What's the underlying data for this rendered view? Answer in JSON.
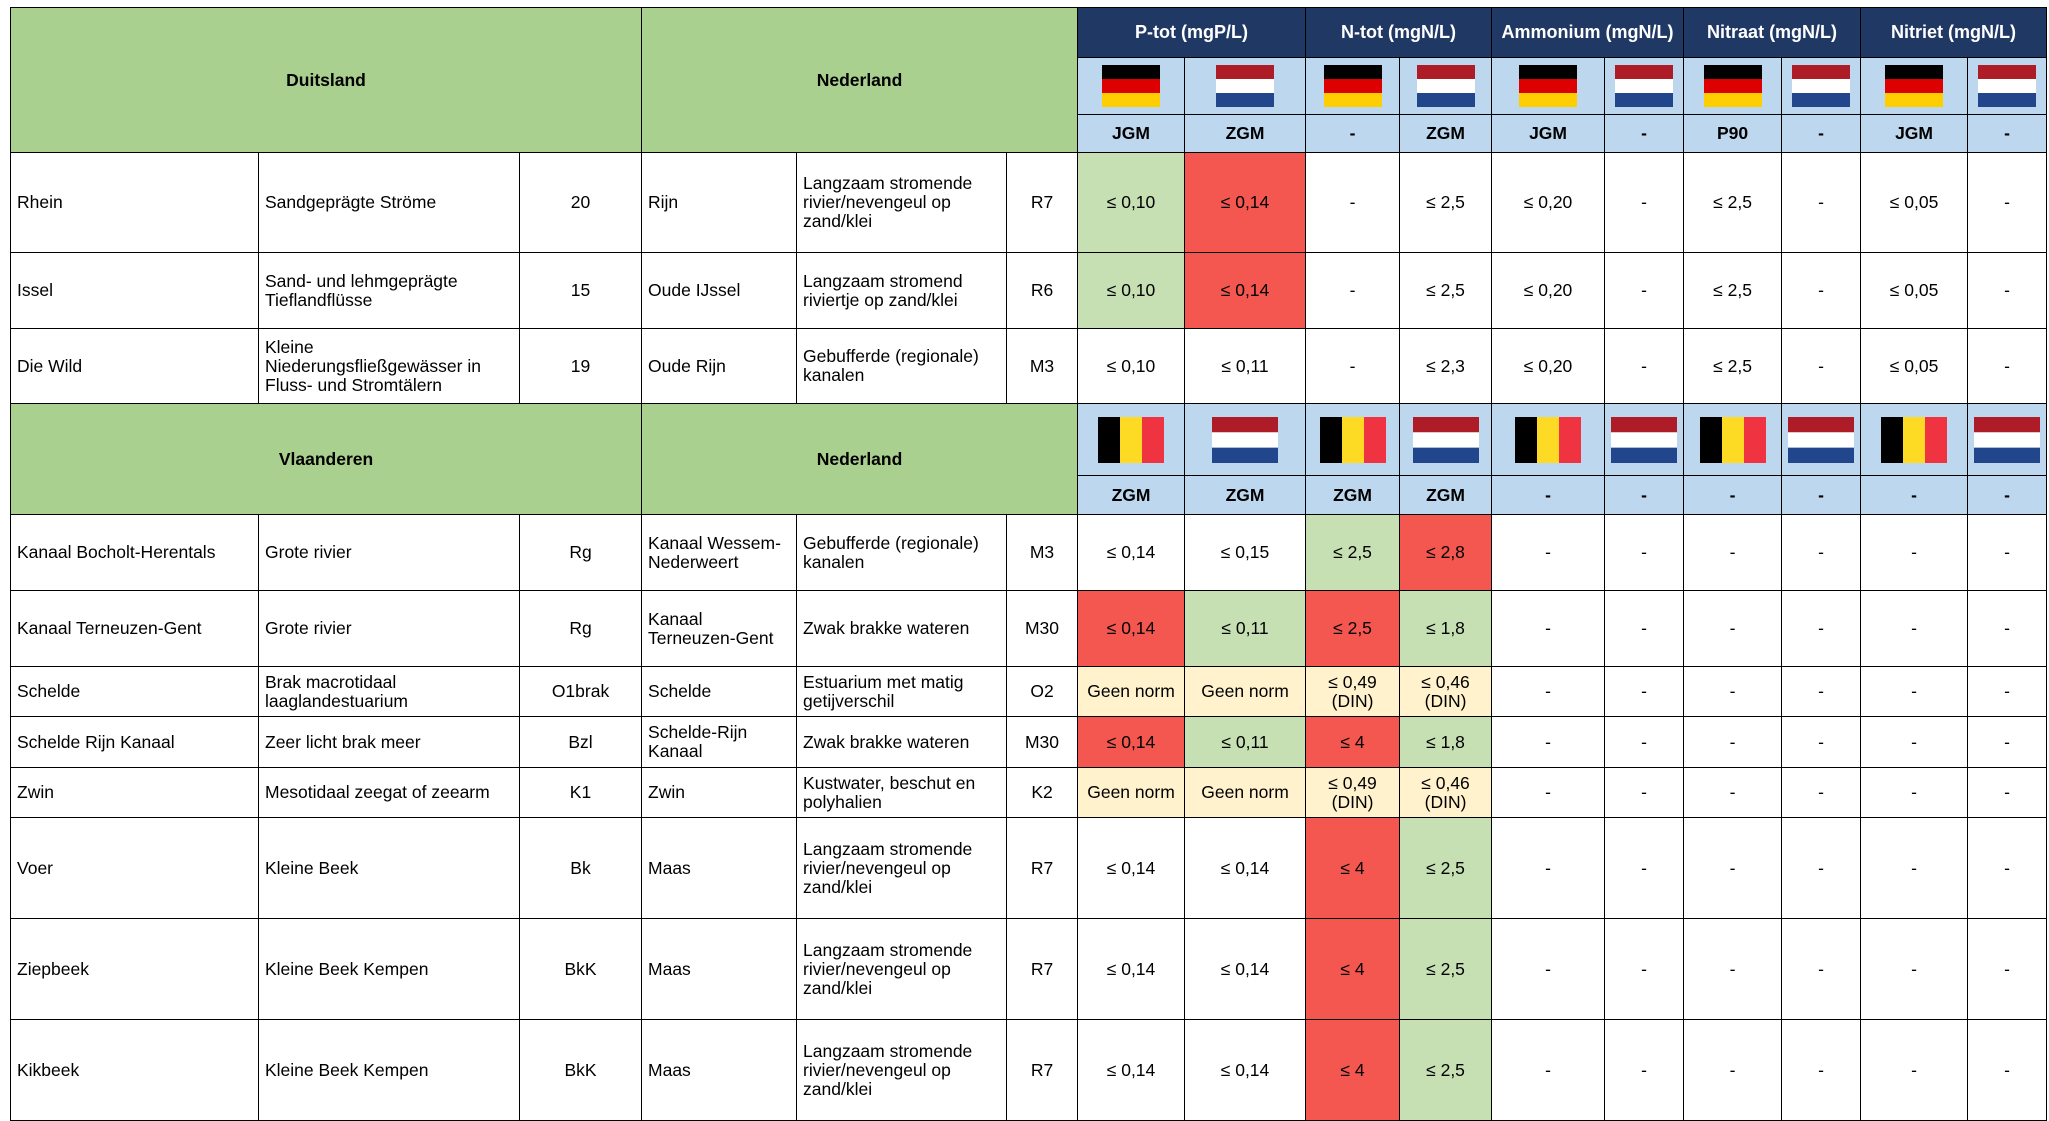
{
  "parameters": [
    "P-tot (mgP/L)",
    "N-tot (mgN/L)",
    "Ammonium (mgN/L)",
    "Nitraat (mgN/L)",
    "Nitriet (mgN/L)"
  ],
  "sections": [
    {
      "left": "Duitsland",
      "right": "Nederland",
      "norms": [
        "JGM",
        "ZGM",
        "-",
        "ZGM",
        "JGM",
        "-",
        "P90",
        "-",
        "JGM",
        "-"
      ],
      "rows": [
        {
          "cells": [
            "Rhein",
            "Sandgeprägte Ströme",
            "20",
            "Rijn",
            "Langzaam stromende rivier/nevengeul op zand/klei",
            "R7",
            "≤ 0,10",
            "≤ 0,14",
            "-",
            "≤ 2,5",
            "≤ 0,20",
            "-",
            "≤ 2,5",
            "-",
            "≤ 0,05",
            "-"
          ],
          "fills": [
            "#c6e0b4",
            "#f4574f",
            null,
            null,
            null,
            null,
            null,
            null,
            null,
            null
          ]
        },
        {
          "cells": [
            "Issel",
            "Sand- und lehmgeprägte Tieflandflüsse",
            "15",
            "Oude IJssel",
            "Langzaam stromend riviertje op zand/klei",
            "R6",
            "≤ 0,10",
            "≤ 0,14",
            "-",
            "≤ 2,5",
            "≤ 0,20",
            "-",
            "≤ 2,5",
            "-",
            "≤ 0,05",
            "-"
          ],
          "fills": [
            "#c6e0b4",
            "#f4574f",
            null,
            null,
            null,
            null,
            null,
            null,
            null,
            null
          ]
        },
        {
          "cells": [
            "Die Wild",
            "Kleine Niederungsfließgewässer in Fluss- und Stromtälern",
            "19",
            "Oude Rijn",
            "Gebufferde (regionale) kanalen",
            "M3",
            "≤ 0,10",
            "≤ 0,11",
            "-",
            "≤ 2,3",
            "≤ 0,20",
            "-",
            "≤ 2,5",
            "-",
            "≤ 0,05",
            "-"
          ],
          "fills": [
            null,
            null,
            null,
            null,
            null,
            null,
            null,
            null,
            null,
            null
          ]
        }
      ]
    },
    {
      "left": "Vlaanderen",
      "right": "Nederland",
      "norms": [
        "ZGM",
        "ZGM",
        "ZGM",
        "ZGM",
        "-",
        "-",
        "-",
        "-",
        "-",
        "-"
      ],
      "rows": [
        {
          "cells": [
            "Kanaal Bocholt-Herentals",
            "Grote rivier",
            "Rg",
            "Kanaal Wessem-Nederweert",
            "Gebufferde (regionale) kanalen",
            "M3",
            "≤ 0,14",
            "≤ 0,15",
            "≤ 2,5",
            "≤ 2,8",
            "-",
            "-",
            "-",
            "-",
            "-",
            "-"
          ],
          "fills": [
            null,
            null,
            "#c6e0b4",
            "#f4574f",
            null,
            null,
            null,
            null,
            null,
            null
          ]
        },
        {
          "cells": [
            "Kanaal Terneuzen-Gent",
            "Grote rivier",
            "Rg",
            "Kanaal Terneuzen-Gent",
            "Zwak brakke wateren",
            "M30",
            "≤ 0,14",
            "≤ 0,11",
            "≤ 2,5",
            "≤ 1,8",
            "-",
            "-",
            "-",
            "-",
            "-",
            "-"
          ],
          "fills": [
            "#f4574f",
            "#c6e0b4",
            "#f4574f",
            "#c6e0b4",
            null,
            null,
            null,
            null,
            null,
            null
          ]
        },
        {
          "cells": [
            "Schelde",
            "Brak macrotidaal laaglandestuarium",
            "O1brak",
            "Schelde",
            "Estuarium met matig getijverschil",
            "O2",
            "Geen norm",
            "Geen norm",
            "≤ 0,49 (DIN)",
            "≤ 0,46 (DIN)",
            "-",
            "-",
            "-",
            "-",
            "-",
            "-"
          ],
          "fills": [
            "#fff2cc",
            "#fff2cc",
            "#fff2cc",
            "#fff2cc",
            null,
            null,
            null,
            null,
            null,
            null
          ]
        },
        {
          "cells": [
            "Schelde Rijn Kanaal",
            "Zeer licht brak meer",
            "Bzl",
            "Schelde-Rijn Kanaal",
            "Zwak brakke wateren",
            "M30",
            "≤ 0,14",
            "≤ 0,11",
            "≤ 4",
            "≤ 1,8",
            "-",
            "-",
            "-",
            "-",
            "-",
            "-"
          ],
          "fills": [
            "#f4574f",
            "#c6e0b4",
            "#f4574f",
            "#c6e0b4",
            null,
            null,
            null,
            null,
            null,
            null
          ]
        },
        {
          "cells": [
            "Zwin",
            "Mesotidaal zeegat of zeearm",
            "K1",
            "Zwin",
            "Kustwater, beschut en polyhalien",
            "K2",
            "Geen norm",
            "Geen norm",
            "≤ 0,49 (DIN)",
            "≤ 0,46 (DIN)",
            "-",
            "-",
            "-",
            "-",
            "-",
            "-"
          ],
          "fills": [
            "#fff2cc",
            "#fff2cc",
            "#fff2cc",
            "#fff2cc",
            null,
            null,
            null,
            null,
            null,
            null
          ]
        },
        {
          "cells": [
            "Voer",
            "Kleine Beek",
            "Bk",
            "Maas",
            "Langzaam stromende rivier/nevengeul op zand/klei",
            "R7",
            "≤ 0,14",
            "≤ 0,14",
            "≤ 4",
            "≤ 2,5",
            "-",
            "-",
            "-",
            "-",
            "-",
            "-"
          ],
          "fills": [
            null,
            null,
            "#f4574f",
            "#c6e0b4",
            null,
            null,
            null,
            null,
            null,
            null
          ]
        },
        {
          "cells": [
            "Ziepbeek",
            "Kleine Beek Kempen",
            "BkK",
            "Maas",
            "Langzaam stromende rivier/nevengeul op zand/klei",
            "R7",
            "≤ 0,14",
            "≤ 0,14",
            "≤ 4",
            "≤ 2,5",
            "-",
            "-",
            "-",
            "-",
            "-",
            "-"
          ],
          "fills": [
            null,
            null,
            "#f4574f",
            "#c6e0b4",
            null,
            null,
            null,
            null,
            null,
            null
          ]
        },
        {
          "cells": [
            "Kikbeek",
            "Kleine Beek Kempen",
            "BkK",
            "Maas",
            "Langzaam stromende rivier/nevengeul op zand/klei",
            "R7",
            "≤ 0,14",
            "≤ 0,14",
            "≤ 4",
            "≤ 2,5",
            "-",
            "-",
            "-",
            "-",
            "-",
            "-"
          ],
          "fills": [
            null,
            null,
            "#f4574f",
            "#c6e0b4",
            null,
            null,
            null,
            null,
            null,
            null
          ]
        }
      ]
    }
  ]
}
